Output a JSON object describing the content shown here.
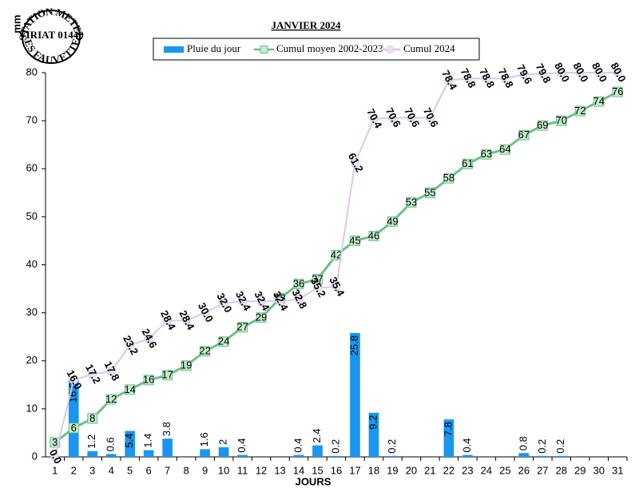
{
  "chart_data": {
    "type": "combo",
    "title": "JANVIER 2024",
    "ylabel": "mm",
    "xlabel": "JOURS",
    "logo": {
      "top": "STATION METEO",
      "middle": "VIRIAT 01440",
      "bottom": "LES FAUVETTES"
    },
    "legend_position": "top",
    "grid": false,
    "categories": [
      "1",
      "2",
      "3",
      "4",
      "5",
      "6",
      "7",
      "8",
      "9",
      "10",
      "11",
      "12",
      "13",
      "14",
      "15",
      "16",
      "17",
      "18",
      "19",
      "20",
      "21",
      "22",
      "23",
      "24",
      "25",
      "26",
      "27",
      "28",
      "29",
      "30",
      "31"
    ],
    "ylim": [
      0,
      80
    ],
    "yticks": [
      0,
      10,
      20,
      30,
      40,
      50,
      60,
      70,
      80
    ],
    "series": [
      {
        "name": "Pluie du jour",
        "type": "bar",
        "color": "#1a96f0",
        "values": [
          0,
          16,
          1.2,
          0.6,
          5.4,
          1.4,
          3.8,
          0,
          1.6,
          2,
          0.4,
          0,
          0,
          0.4,
          2.4,
          0.2,
          25.8,
          9.2,
          0.2,
          0,
          0,
          7.8,
          0.4,
          0,
          0,
          0.8,
          0.2,
          0.2,
          0,
          0,
          0
        ],
        "value_labels": [
          null,
          "16.0",
          "1.2",
          "0.6",
          "5.4",
          "1.4",
          "3.8",
          null,
          "1.6",
          "2",
          "0.4",
          null,
          null,
          "0.4",
          "2.4",
          "0.2",
          "25.8",
          "9.2",
          "0.2",
          null,
          null,
          "7.8",
          "0.4",
          null,
          null,
          "0.8",
          "0.2",
          "0.2",
          null,
          null,
          null
        ]
      },
      {
        "name": "Cumul moyen 2002-2023",
        "type": "line",
        "marker": "square",
        "color": "#6cc08a",
        "values": [
          3,
          6,
          8,
          12,
          14,
          16,
          17,
          19,
          22,
          24,
          27,
          29,
          33,
          36,
          37,
          42,
          45,
          46,
          49,
          53,
          55,
          58,
          61,
          63,
          64,
          67,
          69,
          70,
          72,
          74,
          76
        ]
      },
      {
        "name": "Cumul 2024",
        "type": "line",
        "marker": "circle",
        "color": "#d9c9e6",
        "values": [
          0,
          16,
          17.2,
          17.8,
          23.2,
          24.6,
          28.4,
          28.4,
          30,
          32,
          32.4,
          32.4,
          32.4,
          32.8,
          35.2,
          35.4,
          61.2,
          70.4,
          70.6,
          70.6,
          70.6,
          78.4,
          78.8,
          78.8,
          78.8,
          79.6,
          79.8,
          80,
          80,
          80,
          80
        ],
        "value_labels": [
          "0.0",
          "16.0",
          "17.2",
          "17.8",
          "23.2",
          "24.6",
          "28.4",
          "28.4",
          "30.0",
          "32.0",
          "32.4",
          "32.4",
          "32.4",
          "32.8",
          "35.2",
          "35.4",
          "61.2",
          "70.4",
          "70.6",
          "70.6",
          "70.6",
          "78.4",
          "78.8",
          "78.8",
          "78.8",
          "79.6",
          "79.8",
          "80.0",
          "80.0",
          "80.0",
          "80.0"
        ]
      }
    ]
  }
}
